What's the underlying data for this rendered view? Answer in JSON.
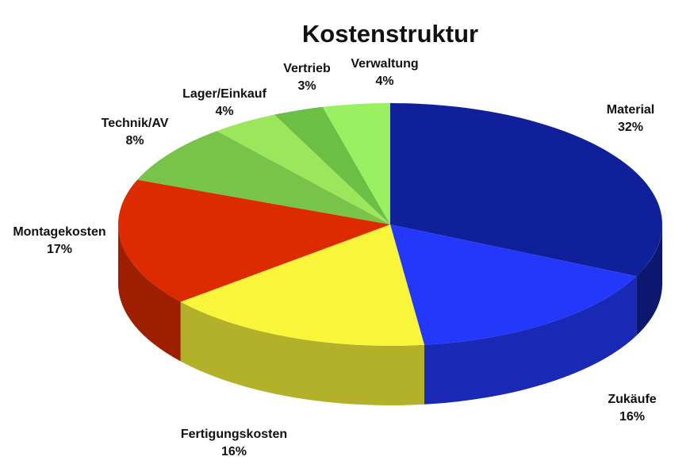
{
  "chart_data": {
    "type": "pie",
    "title": "Kostenstruktur",
    "categories": [
      "Material",
      "Zukäufe",
      "Fertigungskosten",
      "Montagekosten",
      "Technik/AV",
      "Lager/Einkauf",
      "Vertrieb",
      "Verwaltung"
    ],
    "values": [
      32,
      16,
      16,
      17,
      8,
      4,
      3,
      4
    ],
    "value_labels": [
      "32%",
      "16%",
      "16%",
      "17%",
      "8%",
      "4%",
      "3%",
      "4%"
    ],
    "colors": [
      "#10209a",
      "#2338fb",
      "#f8f53a",
      "#dc2b00",
      "#78c44a",
      "#9be65a",
      "#6cbf45",
      "#9af060"
    ]
  }
}
